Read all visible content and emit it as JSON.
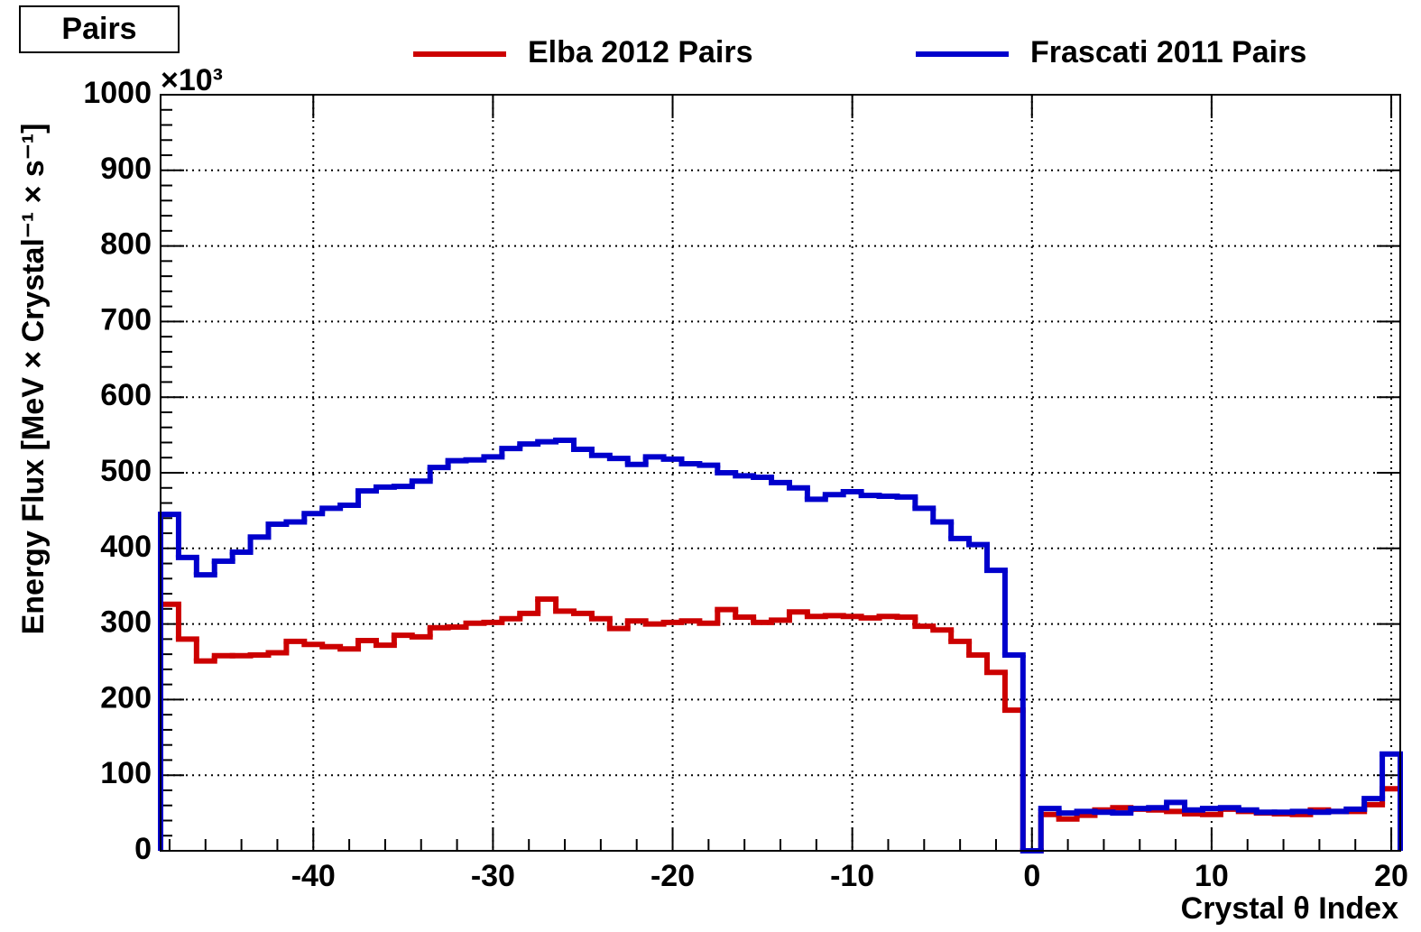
{
  "chart_data": {
    "type": "histogram",
    "title": "Pairs",
    "xlabel": "Crystal θ Index",
    "ylabel": "Energy Flux  [MeV × Crystal⁻¹ × s⁻¹]",
    "y_multiplier": "×10³",
    "bins": [
      -48.5,
      -47.5,
      -46.5,
      -45.5,
      -44.5,
      -43.5,
      -42.5,
      -41.5,
      -40.5,
      -39.5,
      -38.5,
      -37.5,
      -36.5,
      -35.5,
      -34.5,
      -33.5,
      -32.5,
      -31.5,
      -30.5,
      -29.5,
      -28.5,
      -27.5,
      -26.5,
      -25.5,
      -24.5,
      -23.5,
      -22.5,
      -21.5,
      -20.5,
      -19.5,
      -18.5,
      -17.5,
      -16.5,
      -15.5,
      -14.5,
      -13.5,
      -12.5,
      -11.5,
      -10.5,
      -9.5,
      -8.5,
      -7.5,
      -6.5,
      -5.5,
      -4.5,
      -3.5,
      -2.5,
      -1.5,
      -0.5,
      0.5,
      1.5,
      2.5,
      3.5,
      4.5,
      5.5,
      6.5,
      7.5,
      8.5,
      9.5,
      10.5,
      11.5,
      12.5,
      13.5,
      14.5,
      15.5,
      16.5,
      17.5,
      18.5,
      19.5,
      20.5
    ],
    "series": [
      {
        "name": "Elba 2012 Pairs",
        "color": "#cc0000",
        "values": [
          326,
          280,
          251,
          258,
          258,
          259,
          262,
          277,
          273,
          270,
          267,
          278,
          272,
          285,
          283,
          295,
          296,
          301,
          302,
          307,
          314,
          333,
          317,
          314,
          307,
          294,
          304,
          300,
          302,
          304,
          301,
          319,
          309,
          302,
          305,
          316,
          310,
          311,
          310,
          308,
          310,
          309,
          297,
          292,
          277,
          259,
          236,
          186,
          0,
          48,
          42,
          47,
          54,
          57,
          55,
          54,
          52,
          49,
          48,
          55,
          52,
          50,
          49,
          48,
          54,
          52,
          52,
          61,
          82
        ]
      },
      {
        "name": "Frascati 2011 Pairs",
        "color": "#0000cc",
        "values": [
          445,
          388,
          365,
          383,
          395,
          415,
          432,
          435,
          446,
          453,
          457,
          476,
          481,
          482,
          489,
          507,
          516,
          517,
          521,
          532,
          538,
          541,
          543,
          531,
          523,
          519,
          511,
          521,
          518,
          512,
          510,
          500,
          496,
          494,
          487,
          480,
          465,
          471,
          475,
          470,
          469,
          468,
          453,
          435,
          413,
          405,
          371,
          259,
          0,
          56,
          50,
          52,
          51,
          50,
          56,
          57,
          64,
          54,
          56,
          57,
          54,
          51,
          51,
          52,
          51,
          52,
          55,
          69,
          128
        ]
      }
    ],
    "xlim": [
      -48.5,
      20.5
    ],
    "xticks": [
      -40,
      -30,
      -20,
      -10,
      0,
      10,
      20
    ],
    "ylim": [
      0,
      1000
    ],
    "yticks": [
      0,
      100,
      200,
      300,
      400,
      500,
      600,
      700,
      800,
      900,
      1000
    ],
    "grid": true,
    "legend": "top"
  }
}
